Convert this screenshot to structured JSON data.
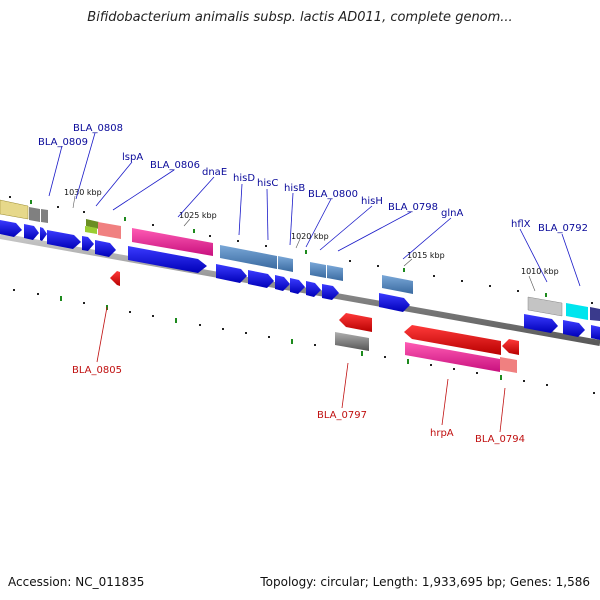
{
  "title": "Bifidobacterium animalis subsp. lactis AD011, complete genom...",
  "footer": {
    "accession": "Accession: NC_011835",
    "topology": "Topology: circular; Length: 1,933,695 bp; Genes: 1,586"
  },
  "scale_labels": [
    "1030 kbp",
    "1025 kbp",
    "1020 kbp",
    "1015 kbp",
    "1010 kbp"
  ],
  "forward_genes": [
    "BLA_0809",
    "BLA_0808",
    "lspA",
    "BLA_0806",
    "dnaE",
    "hisD",
    "hisC",
    "hisB",
    "BLA_0800",
    "hisH",
    "BLA_0798",
    "glnA",
    "hflX",
    "BLA_0792"
  ],
  "reverse_genes": [
    "BLA_0805",
    "BLA_0797",
    "hrpA",
    "BLA_0794"
  ],
  "colors": {
    "forward_cds": "#0000dd",
    "reverse_cds": "#dd0000",
    "backbone": "#8a8a8a",
    "tick": "#228b22",
    "label_forward": "#0a0a9a",
    "label_reverse": "#c01010"
  }
}
